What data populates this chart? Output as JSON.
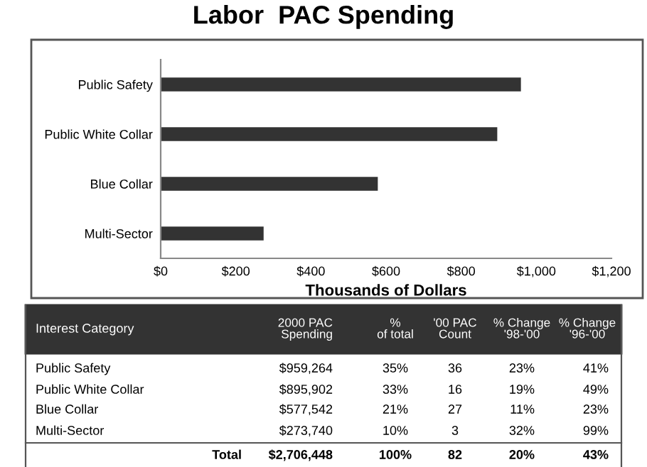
{
  "chart_data": {
    "type": "bar",
    "orientation": "horizontal",
    "title": "Labor  PAC Spending",
    "xlabel": "Thousands of Dollars",
    "categories": [
      "Public Safety",
      "Public White Collar",
      "Blue Collar",
      "Multi-Sector"
    ],
    "values": [
      959,
      896,
      578,
      274
    ],
    "color": "#333333",
    "xlim": [
      0,
      1200
    ],
    "xticks": [
      {
        "value": 0,
        "label": "$0"
      },
      {
        "value": 200,
        "label": "$200"
      },
      {
        "value": 400,
        "label": "$400"
      },
      {
        "value": 600,
        "label": "$600"
      },
      {
        "value": 800,
        "label": "$800"
      },
      {
        "value": 1000,
        "label": "$1,000"
      },
      {
        "value": 1200,
        "label": "$1,200"
      }
    ],
    "grid": false,
    "legend": false,
    "annotations": [
      "Interest Category",
      "2000 PAC\nSpending",
      "%\nof total",
      "'00 PAC\nCount",
      "% Change\n'98-'00",
      "% Change\n'96-'00",
      "Public Safety",
      "$959,264",
      "35%",
      "36",
      "23%",
      "41%",
      "Public White Collar",
      "$895,902",
      "33%",
      "16",
      "19%",
      "49%",
      "Blue Collar",
      "$577,542",
      "21%",
      "27",
      "11%",
      "23%",
      "Multi-Sector",
      "$273,740",
      "10%",
      "3",
      "32%",
      "99%",
      "Total",
      "$2,706,448",
      "100%",
      "82",
      "20%",
      "43%"
    ]
  }
}
